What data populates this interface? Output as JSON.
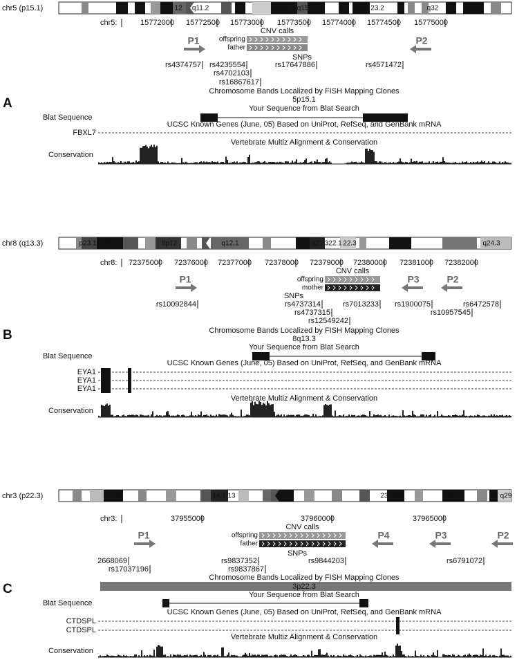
{
  "panels": [
    {
      "label": "A",
      "ideogram": {
        "chrom": "chr5 (p15.1)",
        "bands": [
          "12",
          "q11.2",
          "5q14.3",
          "q15",
          "21.1",
          "23.1",
          "23.2",
          "q32",
          "5q34"
        ]
      },
      "ruler": {
        "chrom": "chr5:",
        "ticks": [
          "15772000",
          "15772500",
          "15773000",
          "15773500",
          "15774000",
          "15774500",
          "15775000"
        ]
      },
      "cnv": {
        "title": "CNV calls",
        "tracks": [
          "offspring",
          "father"
        ]
      },
      "primers": [
        "P1",
        "P2"
      ],
      "snps": {
        "title": "SNPs",
        "ids": [
          "rs4374757",
          "rs4235554",
          "rs17647886",
          "rs4571472",
          "rs4702103",
          "rs16867617"
        ]
      },
      "fish": {
        "title": "Chromosome Bands Localized by FISH Mapping Clones",
        "band": "5p15.1"
      },
      "blat": {
        "title": "Your Sequence from Blat Search",
        "label": "Blat Sequence"
      },
      "genes": {
        "title": "UCSC Known Genes (June, 05) Based on UniProt, RefSeq, and GenBank mRNA",
        "names": [
          "FBXL7"
        ]
      },
      "conservation": {
        "title": "Vertebrate Multiz Alignment & Conservation",
        "label": "Conservation"
      }
    },
    {
      "label": "B",
      "ideogram": {
        "chrom": "chr8 (q13.3)",
        "bands": [
          "p23.1",
          "8p22",
          "8p12",
          "q12.1",
          "q21.3",
          "22.1",
          "22.3",
          "23.3",
          "q24.3"
        ]
      },
      "ruler": {
        "chrom": "chr8:",
        "ticks": [
          "72375000",
          "72376000",
          "72377000",
          "72378000",
          "72379000",
          "72380000",
          "72381000",
          "72382000"
        ]
      },
      "cnv": {
        "title": "CNV calls",
        "tracks": [
          "offspring",
          "mother"
        ]
      },
      "primers": [
        "P1",
        "P3",
        "P2"
      ],
      "snps": {
        "title": "SNPs",
        "ids": [
          "rs10092844",
          "rs4737314",
          "rs7013233",
          "rs1900075",
          "rs6472578",
          "rs4737315",
          "rs10957545",
          "rs12549242"
        ]
      },
      "fish": {
        "title": "Chromosome Bands Localized by FISH Mapping Clones",
        "band": "8q13.3"
      },
      "blat": {
        "title": "Your Sequence from Blat Search",
        "label": "Blat Sequence"
      },
      "genes": {
        "title": "UCSC Known Genes (June, 05) Based on UniProt, RefSeq, and GenBank mRNA",
        "names": [
          "EYA1",
          "EYA1",
          "EYA1"
        ]
      },
      "conservation": {
        "title": "Vertebrate Multiz Alignment & Conservation",
        "label": "Conservation"
      }
    },
    {
      "label": "C",
      "ideogram": {
        "chrom": "chr3 (p22.3)",
        "bands": [
          "24.3",
          "14.1",
          "13",
          "11.2",
          "23",
          "q24",
          "26.1",
          "26",
          "q29"
        ]
      },
      "ruler": {
        "chrom": "chr3:",
        "ticks": [
          "37955000",
          "37960000",
          "37965000"
        ]
      },
      "cnv": {
        "title": "CNV calls",
        "tracks": [
          "offspring",
          "father"
        ]
      },
      "primers": [
        "P1",
        "P4",
        "P3",
        "P2"
      ],
      "snps": {
        "title": "SNPs",
        "ids": [
          "2668069",
          "rs9837352",
          "rs9844203",
          "rs6791072",
          "rs17037196",
          "rs9837867"
        ]
      },
      "fish": {
        "title": "Chromosome Bands Localized by FISH Mapping Clones",
        "band": "3p22.3"
      },
      "blat": {
        "title": "Your Sequence from Blat Search",
        "label": "Blat Sequence"
      },
      "genes": {
        "title": "UCSC Known Genes (June, 05) Based on UniProt, RefSeq, and GenBank mRNA",
        "names": [
          "CTDSPL",
          "CTDSPL"
        ]
      },
      "conservation": {
        "title": "Vertebrate Multiz Alignment & Conservation",
        "label": "Conservation"
      }
    }
  ]
}
